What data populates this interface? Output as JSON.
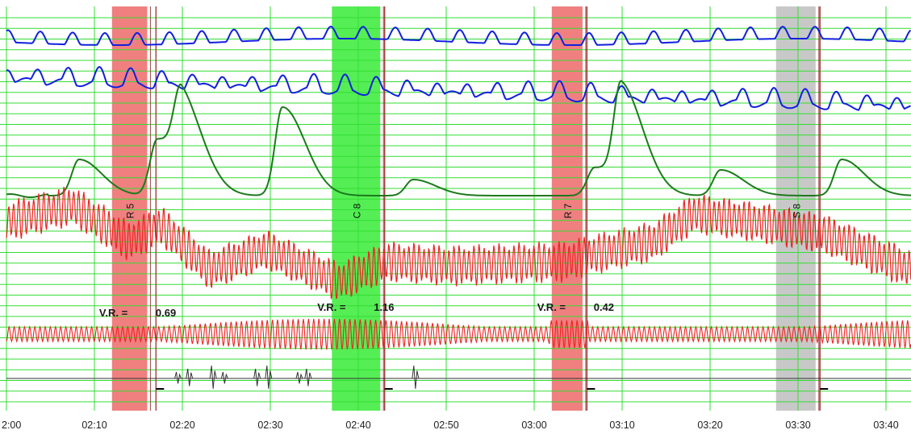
{
  "chart_data": {
    "type": "line",
    "x_axis": {
      "unit": "mm:ss",
      "range_sec": [
        120,
        222
      ],
      "ticks": [
        {
          "sec": 120,
          "label": "2:00"
        },
        {
          "sec": 130,
          "label": "02:10"
        },
        {
          "sec": 140,
          "label": "02:20"
        },
        {
          "sec": 150,
          "label": "02:30"
        },
        {
          "sec": 160,
          "label": "02:40"
        },
        {
          "sec": 170,
          "label": "02:50"
        },
        {
          "sec": 180,
          "label": "03:00"
        },
        {
          "sec": 190,
          "label": "03:10"
        },
        {
          "sec": 200,
          "label": "03:20"
        },
        {
          "sec": 210,
          "label": "03:30"
        },
        {
          "sec": 220,
          "label": "03:40"
        }
      ]
    },
    "grid": true,
    "colors": {
      "grid": "#33dd33",
      "blue_traces": "#1020dd",
      "green_trace": "#1d7a1d",
      "red_traces": "#ee2222",
      "marker_red": "#f07f7f",
      "marker_green": "#55ee55",
      "marker_gray": "#c8c8c8",
      "event_line": "#a04040"
    },
    "questions": [
      {
        "label": "R5",
        "start_sec": 132.0,
        "end_sec": 136.0,
        "color": "red",
        "answer_sec": 137.0
      },
      {
        "label": "C8",
        "start_sec": 157.0,
        "end_sec": 162.5,
        "color": "green",
        "answer_sec": 163.0
      },
      {
        "label": "R7",
        "start_sec": 182.0,
        "end_sec": 185.5,
        "color": "red",
        "answer_sec": 186.0
      },
      {
        "label": "S8",
        "start_sec": 207.5,
        "end_sec": 212.0,
        "color": "gray",
        "answer_sec": 212.5
      }
    ],
    "vr_annotations": [
      {
        "prefix": "V.R. =",
        "value": "0.69",
        "sec": 131.0
      },
      {
        "prefix": "V.R. =",
        "value": "1.16",
        "sec": 155.8
      },
      {
        "prefix": "V.R. =",
        "value": "0.42",
        "sec": 180.8
      }
    ],
    "movement_events_sec": [
      139.5,
      140.8,
      143.5,
      144.8,
      148.5,
      149.8,
      153.3,
      154.3,
      166.5
    ]
  }
}
